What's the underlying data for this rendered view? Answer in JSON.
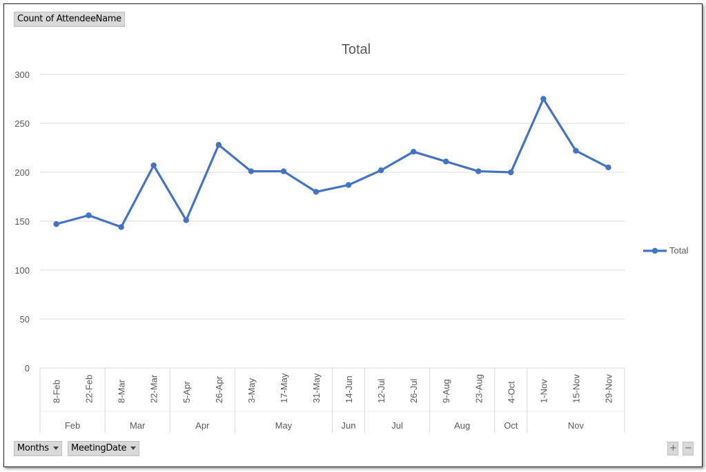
{
  "field_buttons": {
    "value": "Count of AttendeeName",
    "axis": [
      {
        "label": "Months"
      },
      {
        "label": "MeetingDate"
      }
    ]
  },
  "zoom_controls": {
    "plus": "+",
    "minus": "−"
  },
  "chart_data": {
    "type": "line",
    "title": "Total",
    "xlabel": "",
    "ylabel": "",
    "ylim": [
      0,
      300
    ],
    "yticks": [
      "0",
      "50",
      "100",
      "150",
      "200",
      "250",
      "300"
    ],
    "grid": true,
    "legend": {
      "position": "right",
      "entries": [
        "Total"
      ]
    },
    "color": "#4472C4",
    "categories": [
      "8-Feb",
      "22-Feb",
      "8-Mar",
      "22-Mar",
      "5-Apr",
      "26-Apr",
      "3-May",
      "17-May",
      "31-May",
      "14-Jun",
      "12-Jul",
      "26-Jul",
      "9-Aug",
      "23-Aug",
      "4-Oct",
      "1-Nov",
      "15-Nov",
      "29-Nov"
    ],
    "groups": [
      {
        "label": "Feb",
        "count": 2
      },
      {
        "label": "Mar",
        "count": 2
      },
      {
        "label": "Apr",
        "count": 2
      },
      {
        "label": "May",
        "count": 3
      },
      {
        "label": "Jun",
        "count": 1
      },
      {
        "label": "Jul",
        "count": 2
      },
      {
        "label": "Aug",
        "count": 2
      },
      {
        "label": "Oct",
        "count": 1
      },
      {
        "label": "Nov",
        "count": 3
      }
    ],
    "series": [
      {
        "name": "Total",
        "values": [
          147,
          156,
          144,
          207,
          151,
          228,
          201,
          201,
          180,
          187,
          202,
          221,
          211,
          201,
          200,
          275,
          222,
          205
        ]
      }
    ]
  }
}
